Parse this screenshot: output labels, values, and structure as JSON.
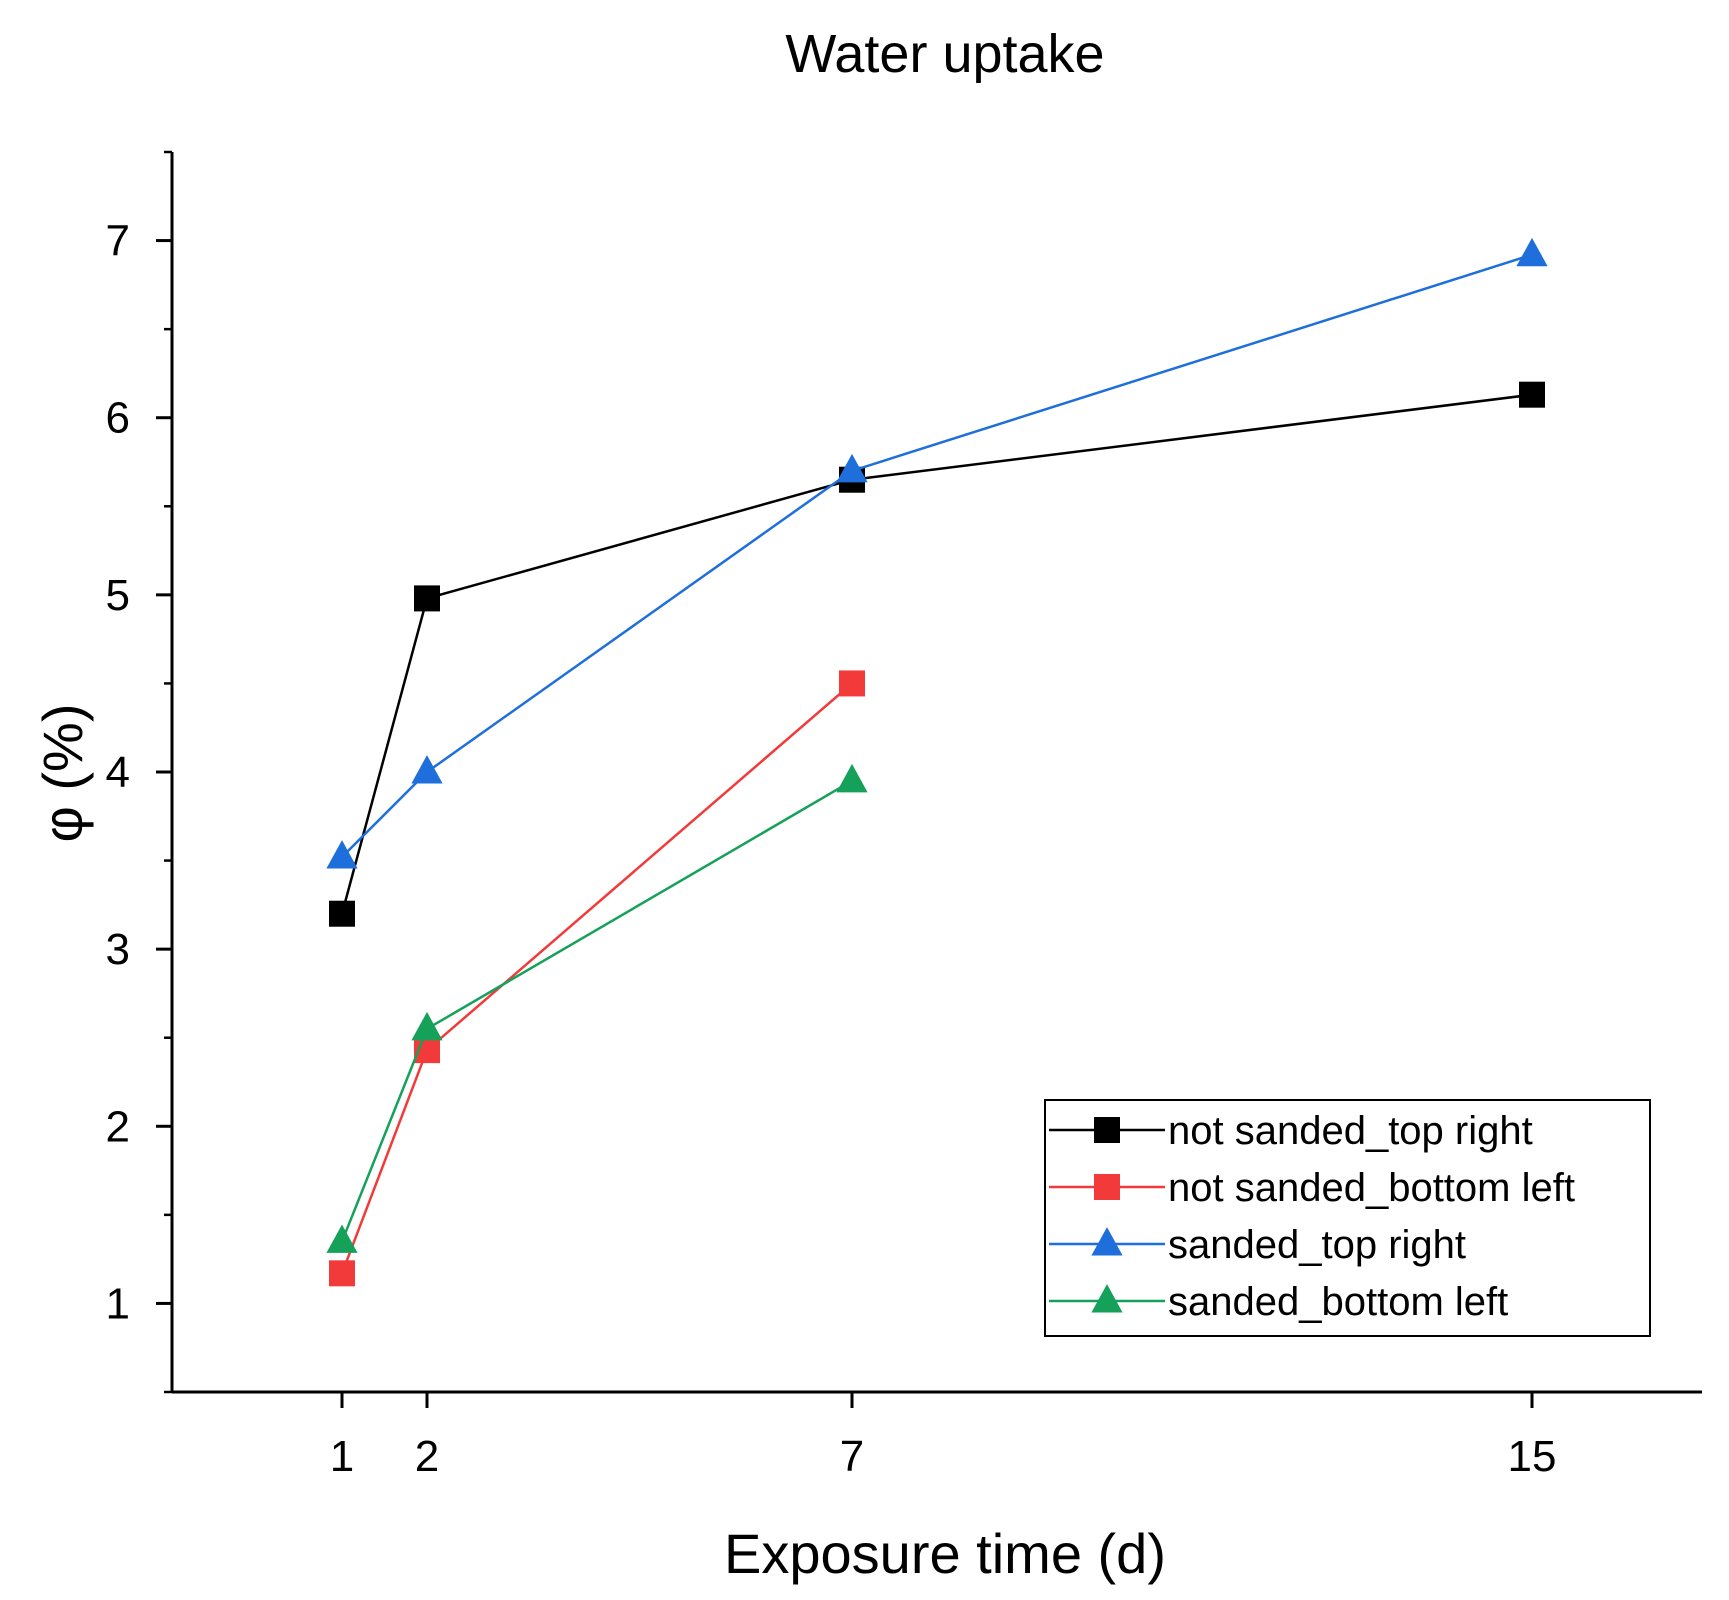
{
  "chart_data": {
    "type": "line",
    "title": "Water uptake",
    "xlabel": "Exposure time (d)",
    "ylabel": "φ (%)",
    "xlim": [
      -1,
      17
    ],
    "ylim": [
      0.5,
      7.5
    ],
    "x_ticks": [
      1,
      2,
      7,
      15
    ],
    "y_ticks": [
      1,
      2,
      3,
      4,
      5,
      6,
      7
    ],
    "y_minor_step": 0.5,
    "legend_position": "bottom-right",
    "series": [
      {
        "name": "not sanded_top right",
        "color": "#000000",
        "marker": "square",
        "x": [
          1,
          2,
          7,
          15
        ],
        "y": [
          3.2,
          4.98,
          5.65,
          6.13
        ]
      },
      {
        "name": "not sanded_bottom left",
        "color": "#f23a3a",
        "marker": "square",
        "x": [
          1,
          2,
          7
        ],
        "y": [
          1.17,
          2.43,
          4.5
        ]
      },
      {
        "name": "sanded_top right",
        "color": "#1e6fdc",
        "marker": "triangle",
        "x": [
          1,
          2,
          7,
          15
        ],
        "y": [
          3.52,
          4.0,
          5.7,
          6.92
        ]
      },
      {
        "name": "sanded_bottom left",
        "color": "#16a15a",
        "marker": "triangle",
        "x": [
          1,
          2,
          7
        ],
        "y": [
          1.35,
          2.55,
          3.95
        ]
      }
    ]
  }
}
